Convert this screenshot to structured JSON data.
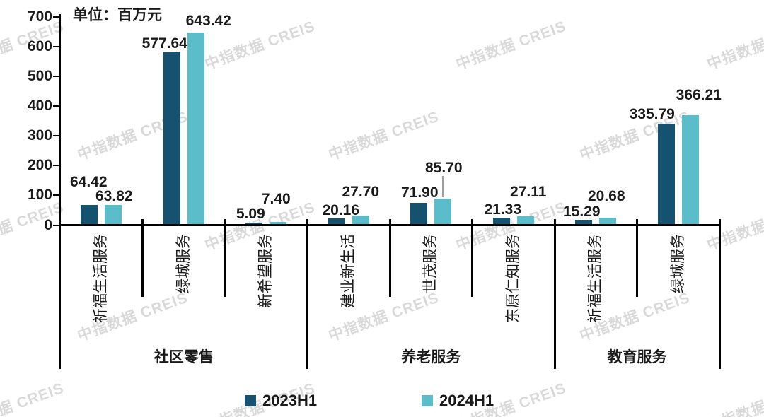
{
  "unit_label": "单位：百万元",
  "watermark": "中指数据 CREIS",
  "chart_data": {
    "type": "bar",
    "title": "",
    "unit": "百万元",
    "ylim": [
      0,
      700
    ],
    "yticks": [
      0,
      100,
      200,
      300,
      400,
      500,
      600,
      700
    ],
    "grid": false,
    "legend_position": "bottom",
    "series": [
      {
        "name": "2023H1",
        "color": "#15526F"
      },
      {
        "name": "2024H1",
        "color": "#5BBDC9"
      }
    ],
    "groups": [
      {
        "label": "社区零售",
        "companies": [
          {
            "name": "祈福生活服务",
            "values": [
              64.42,
              63.82
            ]
          },
          {
            "name": "绿城服务",
            "values": [
              577.64,
              643.42
            ]
          },
          {
            "name": "新希望服务",
            "values": [
              5.09,
              7.4
            ]
          }
        ]
      },
      {
        "label": "养老服务",
        "companies": [
          {
            "name": "建业新生活",
            "values": [
              20.16,
              27.7
            ]
          },
          {
            "name": "世茂服务",
            "values": [
              71.9,
              85.7
            ]
          },
          {
            "name": "东原仁知服务",
            "values": [
              21.33,
              27.11
            ]
          }
        ]
      },
      {
        "label": "教育服务",
        "companies": [
          {
            "name": "祈福生活服务",
            "values": [
              15.29,
              20.68
            ]
          },
          {
            "name": "绿城服务",
            "values": [
              335.79,
              366.21
            ]
          }
        ]
      }
    ]
  }
}
